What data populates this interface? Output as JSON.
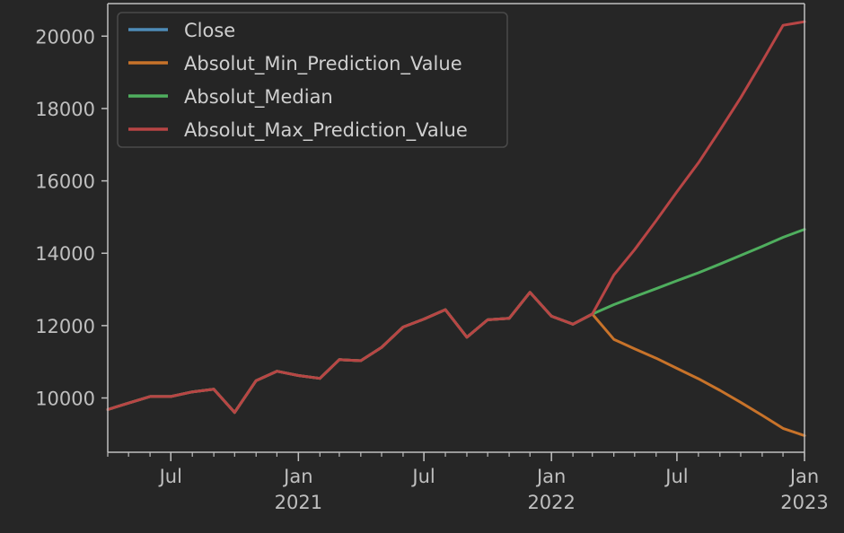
{
  "colors": {
    "background": "#262626",
    "axis_text": "#bfbfbf",
    "spine": "#bfbfbf",
    "legend_border": "#4a4a4a",
    "legend_text": "#cfcfcf"
  },
  "chart_data": {
    "type": "line",
    "title": "",
    "xlabel": "",
    "ylabel": "",
    "grid": false,
    "legend_position": "upper-left",
    "xlim": [
      "2020-04-01",
      "2023-01-01"
    ],
    "ylim": [
      8500,
      20900
    ],
    "yticks": [
      10000,
      12000,
      14000,
      16000,
      18000,
      20000
    ],
    "ytick_labels": [
      "10000",
      "12000",
      "14000",
      "16000",
      "18000",
      "20000"
    ],
    "xticks": [
      {
        "x": "2020-07-01",
        "label": "Jul",
        "sublabel": ""
      },
      {
        "x": "2021-01-01",
        "label": "Jan",
        "sublabel": "2021"
      },
      {
        "x": "2021-07-01",
        "label": "Jul",
        "sublabel": ""
      },
      {
        "x": "2022-01-01",
        "label": "Jan",
        "sublabel": "2022"
      },
      {
        "x": "2022-07-01",
        "label": "Jul",
        "sublabel": ""
      },
      {
        "x": "2023-01-01",
        "label": "Jan",
        "sublabel": "2023"
      }
    ],
    "series": [
      {
        "name": "Close",
        "color": "#4e8cb8",
        "x": [
          "2020-04-01",
          "2020-05-01",
          "2020-06-01",
          "2020-07-01",
          "2020-08-01",
          "2020-09-01",
          "2020-10-01",
          "2020-11-01",
          "2020-12-01",
          "2021-01-01",
          "2021-02-01",
          "2021-03-01",
          "2021-04-01",
          "2021-05-01",
          "2021-06-01",
          "2021-07-01",
          "2021-08-01",
          "2021-09-01",
          "2021-10-01",
          "2021-11-01",
          "2021-12-01",
          "2022-01-01",
          "2022-02-01",
          "2022-03-01"
        ],
        "values": [
          9680,
          9860,
          10040,
          10040,
          10170,
          10240,
          9600,
          10480,
          10740,
          10620,
          10540,
          11060,
          11030,
          11400,
          11960,
          12180,
          12440,
          11680,
          12160,
          12200,
          12920,
          12260,
          12040,
          12320
        ]
      },
      {
        "name": "Absolut_Min_Prediction_Value",
        "color": "#c8732a",
        "x": [
          "2020-04-01",
          "2020-05-01",
          "2020-06-01",
          "2020-07-01",
          "2020-08-01",
          "2020-09-01",
          "2020-10-01",
          "2020-11-01",
          "2020-12-01",
          "2021-01-01",
          "2021-02-01",
          "2021-03-01",
          "2021-04-01",
          "2021-05-01",
          "2021-06-01",
          "2021-07-01",
          "2021-08-01",
          "2021-09-01",
          "2021-10-01",
          "2021-11-01",
          "2021-12-01",
          "2022-01-01",
          "2022-02-01",
          "2022-03-01",
          "2022-04-01",
          "2022-05-01",
          "2022-06-01",
          "2022-07-01",
          "2022-08-01",
          "2022-09-01",
          "2022-10-01",
          "2022-11-01",
          "2022-12-01",
          "2023-01-01"
        ],
        "values": [
          9680,
          9860,
          10040,
          10040,
          10170,
          10240,
          9600,
          10480,
          10740,
          10620,
          10540,
          11060,
          11030,
          11400,
          11960,
          12180,
          12440,
          11680,
          12160,
          12200,
          12920,
          12260,
          12040,
          12320,
          11620,
          11360,
          11100,
          10820,
          10530,
          10210,
          9880,
          9520,
          9160,
          8960
        ]
      },
      {
        "name": "Absolut_Median",
        "color": "#4fae5e",
        "x": [
          "2020-04-01",
          "2020-05-01",
          "2020-06-01",
          "2020-07-01",
          "2020-08-01",
          "2020-09-01",
          "2020-10-01",
          "2020-11-01",
          "2020-12-01",
          "2021-01-01",
          "2021-02-01",
          "2021-03-01",
          "2021-04-01",
          "2021-05-01",
          "2021-06-01",
          "2021-07-01",
          "2021-08-01",
          "2021-09-01",
          "2021-10-01",
          "2021-11-01",
          "2021-12-01",
          "2022-01-01",
          "2022-02-01",
          "2022-03-01",
          "2022-04-01",
          "2022-05-01",
          "2022-06-01",
          "2022-07-01",
          "2022-08-01",
          "2022-09-01",
          "2022-10-01",
          "2022-11-01",
          "2022-12-01",
          "2023-01-01"
        ],
        "values": [
          9680,
          9860,
          10040,
          10040,
          10170,
          10240,
          9600,
          10480,
          10740,
          10620,
          10540,
          11060,
          11030,
          11400,
          11960,
          12180,
          12440,
          11680,
          12160,
          12200,
          12920,
          12260,
          12040,
          12320,
          12580,
          12800,
          13020,
          13240,
          13460,
          13700,
          13940,
          14190,
          14440,
          14660
        ]
      },
      {
        "name": "Absolut_Max_Prediction_Value",
        "color": "#b84545",
        "x": [
          "2020-04-01",
          "2020-05-01",
          "2020-06-01",
          "2020-07-01",
          "2020-08-01",
          "2020-09-01",
          "2020-10-01",
          "2020-11-01",
          "2020-12-01",
          "2021-01-01",
          "2021-02-01",
          "2021-03-01",
          "2021-04-01",
          "2021-05-01",
          "2021-06-01",
          "2021-07-01",
          "2021-08-01",
          "2021-09-01",
          "2021-10-01",
          "2021-11-01",
          "2021-12-01",
          "2022-01-01",
          "2022-02-01",
          "2022-03-01",
          "2022-04-01",
          "2022-05-01",
          "2022-06-01",
          "2022-07-01",
          "2022-08-01",
          "2022-09-01",
          "2022-10-01",
          "2022-11-01",
          "2022-12-01",
          "2023-01-01"
        ],
        "values": [
          9680,
          9860,
          10040,
          10040,
          10170,
          10240,
          9600,
          10480,
          10740,
          10620,
          10540,
          11060,
          11030,
          11400,
          11960,
          12180,
          12440,
          11680,
          12160,
          12200,
          12920,
          12260,
          12040,
          12320,
          13400,
          14100,
          14900,
          15700,
          16500,
          17400,
          18300,
          19300,
          20300,
          20400
        ]
      }
    ]
  }
}
